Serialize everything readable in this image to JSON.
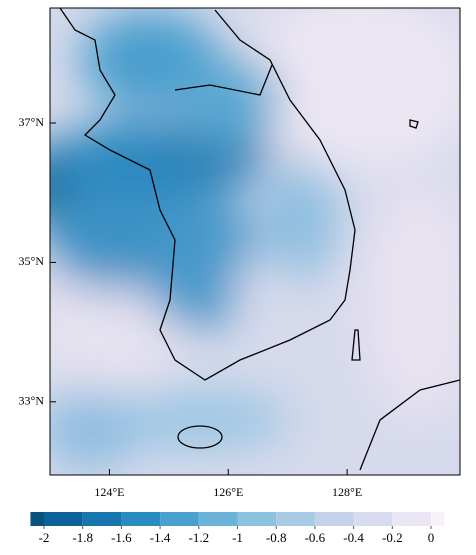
{
  "map": {
    "xlim": [
      123,
      129.9
    ],
    "ylim": [
      31.95,
      38.65
    ],
    "xticks": [
      {
        "value": 124,
        "label": "124°E"
      },
      {
        "value": 126,
        "label": "126°E"
      },
      {
        "value": 128,
        "label": "128°E"
      }
    ],
    "yticks": [
      {
        "value": 33,
        "label": "33°N"
      },
      {
        "value": 35,
        "label": "35°N"
      },
      {
        "value": 37,
        "label": "37°N"
      }
    ]
  },
  "colorbar": {
    "ticks": [
      -2,
      -1.8,
      -1.6,
      -1.4,
      -1.2,
      -1,
      -0.8,
      -0.6,
      -0.4,
      -0.2,
      0
    ],
    "colors": [
      "#08527f",
      "#0b6399",
      "#1676ad",
      "#2a8bc0",
      "#4aa0cf",
      "#6bb3d9",
      "#8cc2e0",
      "#a8cbe5",
      "#c3d2ea",
      "#d9dcef",
      "#ebe6f3",
      "#f8f2f8"
    ]
  }
}
